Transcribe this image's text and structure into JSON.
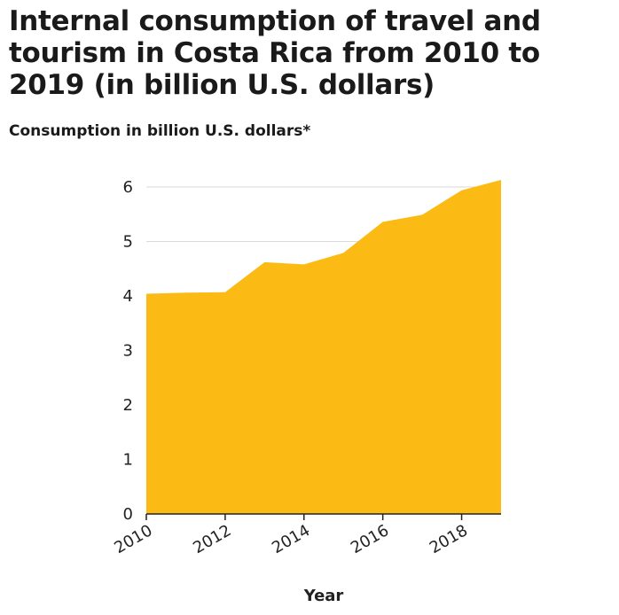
{
  "title": "Internal consumption of travel and tourism in Costa Rica from 2010 to 2019 (in billion U.S. dollars)",
  "chart_data": {
    "type": "area",
    "title": "Internal consumption of travel and tourism in Costa Rica from 2010 to 2019 (in billion U.S. dollars)",
    "ylabel": "Consumption in billion U.S. dollars*",
    "xlabel": "Year",
    "x": [
      2010,
      2011,
      2012,
      2013,
      2014,
      2015,
      2016,
      2017,
      2018,
      2019
    ],
    "values": [
      4.04,
      4.06,
      4.07,
      4.62,
      4.58,
      4.79,
      5.36,
      5.49,
      5.94,
      6.13
    ],
    "xticks": [
      "2010",
      "2012",
      "2014",
      "2016",
      "2018"
    ],
    "yticks": [
      "0",
      "1",
      "2",
      "3",
      "4",
      "5",
      "6"
    ],
    "xlim": [
      2010,
      2019
    ],
    "ylim": [
      0,
      6
    ],
    "grid": "horizontal",
    "fill_color": "#fbbb14"
  }
}
